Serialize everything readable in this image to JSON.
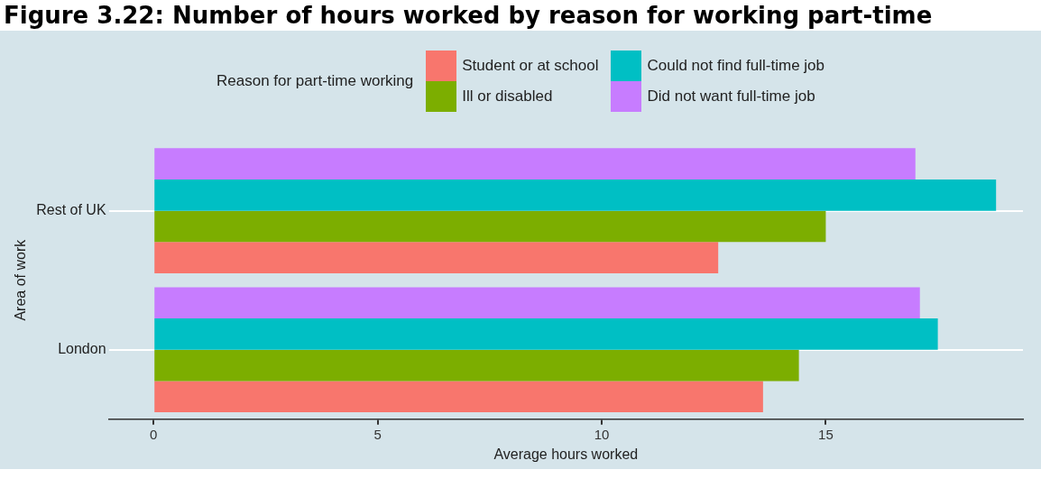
{
  "chart_data": {
    "type": "bar",
    "orientation": "horizontal",
    "title": "Figure 3.22: Number of hours worked by reason for working part-time",
    "xlabel": "Average hours worked",
    "ylabel": "Area of work",
    "legend_title": "Reason for part-time working",
    "categories": [
      "Rest of UK",
      "London"
    ],
    "series": [
      {
        "name": "Student or at school",
        "color": "#f8766d",
        "values": [
          12.6,
          13.6
        ]
      },
      {
        "name": "Ill or disabled",
        "color": "#7cae00",
        "values": [
          15.0,
          14.4
        ]
      },
      {
        "name": "Could not find full-time job",
        "color": "#00bfc4",
        "values": [
          18.8,
          17.5
        ]
      },
      {
        "name": "Did not want full-time job",
        "color": "#c77cff",
        "values": [
          17.0,
          17.1
        ]
      }
    ],
    "xlim": [
      -1,
      19.4
    ],
    "xticks": [
      0,
      5,
      10,
      15
    ],
    "grid": "y",
    "legend": "top"
  }
}
